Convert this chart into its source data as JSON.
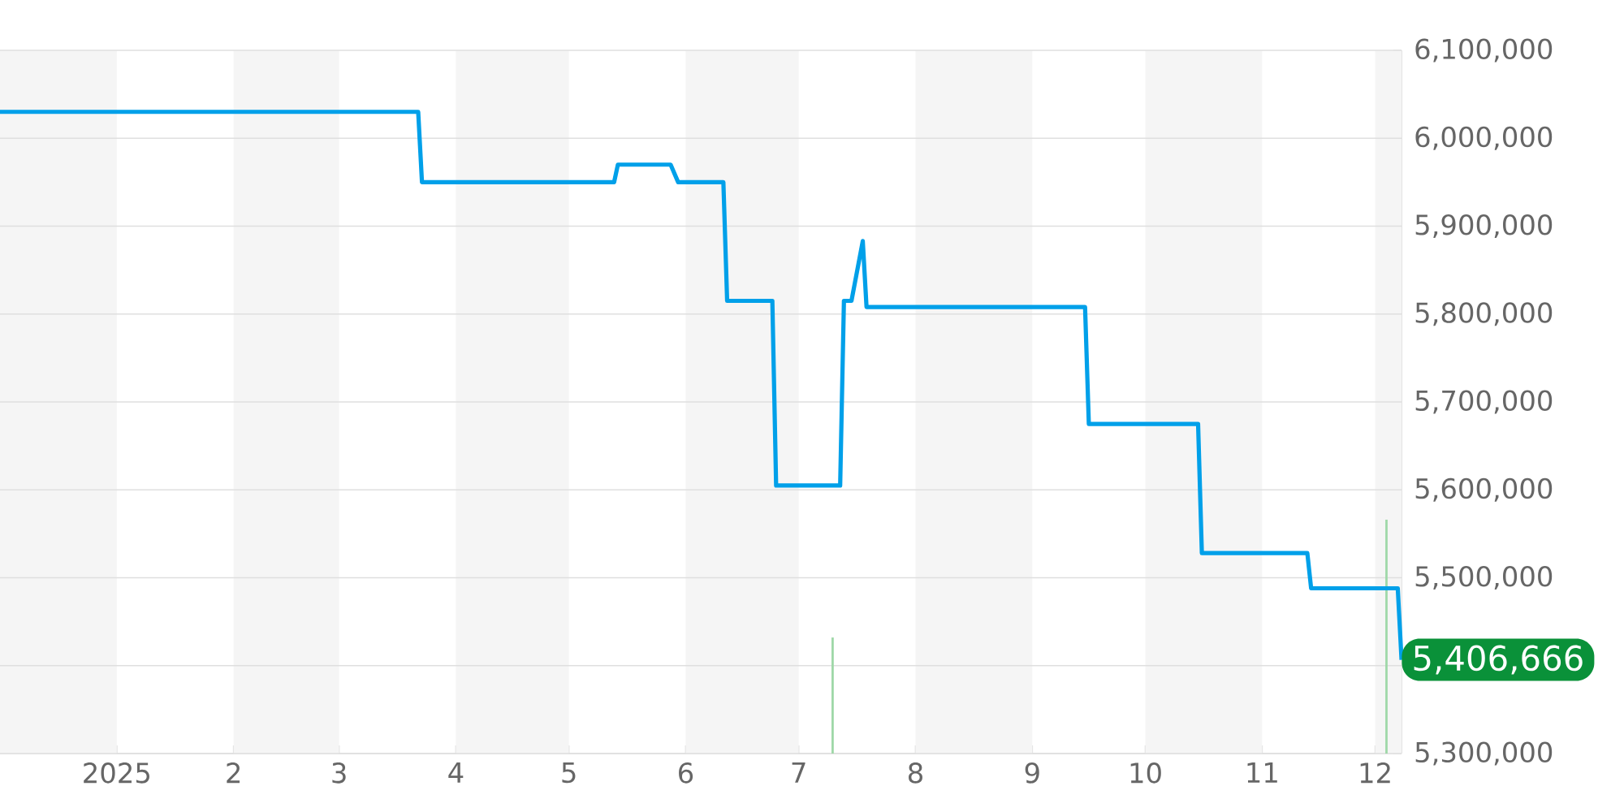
{
  "chart_data": {
    "type": "line",
    "x": [
      "2024-12-01",
      "2025-03-22",
      "2025-03-23",
      "2025-05-13",
      "2025-05-14",
      "2025-05-28",
      "2025-05-30",
      "2025-06-11",
      "2025-06-12",
      "2025-06-24",
      "2025-06-25",
      "2025-07-12",
      "2025-07-13",
      "2025-07-15",
      "2025-07-18",
      "2025-07-19",
      "2025-09-15",
      "2025-09-16",
      "2025-10-15",
      "2025-10-16",
      "2025-11-13",
      "2025-11-14",
      "2025-12-07",
      "2025-12-08"
    ],
    "series": [
      {
        "color": "#00a0e9",
        "values": [
          6030000,
          6030000,
          5950000,
          5950000,
          5970000,
          5970000,
          5950000,
          5950000,
          5815000,
          5815000,
          5605000,
          5605000,
          5815000,
          5815000,
          5883000,
          5808000,
          5808000,
          5675000,
          5675000,
          5528000,
          5528000,
          5488000,
          5488000,
          5406666
        ]
      },
      {
        "type": "bar",
        "color": "#9fd8a8",
        "x": [
          "2025-07-10",
          "2025-12-04"
        ],
        "values": [
          5432000,
          5566000
        ]
      }
    ],
    "xlim": [
      "2024-12-01",
      "2025-12-08"
    ],
    "xticks": [
      {
        "value": "2025-01-01",
        "label": "2025"
      },
      {
        "value": "2025-02-01",
        "label": "2"
      },
      {
        "value": "2025-03-01",
        "label": "3"
      },
      {
        "value": "2025-04-01",
        "label": "4"
      },
      {
        "value": "2025-05-01",
        "label": "5"
      },
      {
        "value": "2025-06-01",
        "label": "6"
      },
      {
        "value": "2025-07-01",
        "label": "7"
      },
      {
        "value": "2025-08-01",
        "label": "8"
      },
      {
        "value": "2025-09-01",
        "label": "9"
      },
      {
        "value": "2025-10-01",
        "label": "10"
      },
      {
        "value": "2025-11-01",
        "label": "11"
      },
      {
        "value": "2025-12-01",
        "label": "12"
      }
    ],
    "ylim": [
      5300000,
      6100000
    ],
    "yticks": [
      {
        "value": 5300000,
        "label": "5,300,000"
      },
      {
        "value": 5400000,
        "label": null
      },
      {
        "value": 5500000,
        "label": "5,500,000"
      },
      {
        "value": 5600000,
        "label": "5,600,000"
      },
      {
        "value": 5700000,
        "label": "5,700,000"
      },
      {
        "value": 5800000,
        "label": "5,800,000"
      },
      {
        "value": 5900000,
        "label": "5,900,000"
      },
      {
        "value": 6000000,
        "label": "6,000,000"
      },
      {
        "value": 6100000,
        "label": "6,100,000"
      }
    ],
    "grid": "y",
    "bands": [
      {
        "axis": "x",
        "from": "2024-12-01",
        "to": "2025-01-01",
        "color": "#f5f5f5"
      },
      {
        "axis": "x",
        "from": "2025-02-01",
        "to": "2025-03-01",
        "color": "#f5f5f5"
      },
      {
        "axis": "x",
        "from": "2025-04-01",
        "to": "2025-05-01",
        "color": "#f5f5f5"
      },
      {
        "axis": "x",
        "from": "2025-06-01",
        "to": "2025-07-01",
        "color": "#f5f5f5"
      },
      {
        "axis": "x",
        "from": "2025-08-01",
        "to": "2025-09-01",
        "color": "#f5f5f5"
      },
      {
        "axis": "x",
        "from": "2025-10-01",
        "to": "2025-11-01",
        "color": "#f5f5f5"
      },
      {
        "axis": "x",
        "from": "2025-12-01",
        "to": "2025-12-08",
        "color": "#f5f5f5"
      }
    ],
    "annotations": [
      {
        "text": "5,406,666",
        "x": "2025-12-08",
        "y": 5406666
      }
    ]
  }
}
